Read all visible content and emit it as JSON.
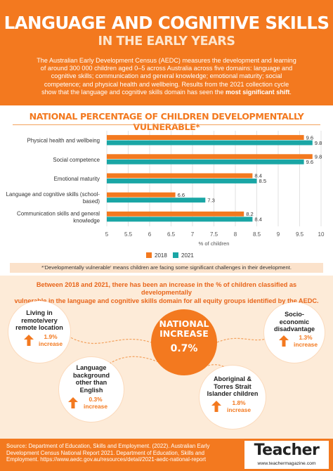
{
  "header": {
    "title": "LANGUAGE AND COGNITIVE SKILLS",
    "subtitle": "IN THE EARLY YEARS",
    "intro_lines": [
      "The Australian Early Development Census (AEDC) measures the development and learning",
      "of around 300 000 children aged 0–5 across Australia across five domains: language and",
      "cognitive skills; communication and general knowledge; emotional maturity; social",
      "competence; and physical health and wellbeing. Results from the 2021 collection cycle"
    ],
    "intro_last_prefix": "show that the language and cognitive skills domain has seen the ",
    "intro_last_bold": "most significant shift",
    "intro_last_suffix": "."
  },
  "chart_data": {
    "type": "bar",
    "orientation": "horizontal",
    "title": "NATIONAL PERCENTAGE OF CHILDREN DEVELOPMENTALLY VULNERABLE*",
    "categories": [
      "Physical health and wellbeing",
      "Social competence",
      "Emotional maturity",
      "Language and cognitive skills (school-based)",
      "Communication skills and general knowledge"
    ],
    "category_lines": [
      [
        "Physical health and wellbeing"
      ],
      [
        "Social competence"
      ],
      [
        "Emotional maturity"
      ],
      [
        "Language and cognitive skills (school-",
        "based)"
      ],
      [
        "Communication skills and general",
        "knowledge"
      ]
    ],
    "series": [
      {
        "name": "2018",
        "color": "#f3791f",
        "values": [
          9.6,
          9.8,
          8.4,
          6.6,
          8.2
        ]
      },
      {
        "name": "2021",
        "color": "#1aa6a5",
        "values": [
          9.8,
          9.6,
          8.5,
          7.3,
          8.4
        ]
      }
    ],
    "xlim": [
      5,
      10
    ],
    "xticks": [
      "5",
      "5.5",
      "6",
      "6.5",
      "7",
      "7.5",
      "8",
      "8.5",
      "9",
      "9.5",
      "10"
    ],
    "xlabel": "% of children",
    "grid": true,
    "legend": "bottom"
  },
  "footnote": "*‘Developmentally vulnerable’ means children are facing some significant challenges in their development.",
  "equity": {
    "intro_lines": [
      "Between 2018 and 2021, there has been an increase in the % of children classified as developmentally",
      "vulnerable in the language and cognitive skills domain for all equity groups identified by the AEDC."
    ],
    "national": {
      "line1": "NATIONAL",
      "line2": "INCREASE",
      "value": "0.7%"
    },
    "groups": [
      {
        "label_lines": [
          "Living in",
          "remote/very",
          "remote location"
        ],
        "value": "1.9%",
        "suffix": "increase"
      },
      {
        "label_lines": [
          "Socio-",
          "economic",
          "disadvantage"
        ],
        "value": "1.3%",
        "suffix": "increase"
      },
      {
        "label_lines": [
          "Language",
          "background",
          "other than",
          "English"
        ],
        "value": "0.3%",
        "suffix": "increase"
      },
      {
        "label_lines": [
          "Aboriginal &",
          "Torres Strait",
          "Islander children"
        ],
        "value": "1.8%",
        "suffix": "increase"
      }
    ]
  },
  "footer": {
    "source_label": "Source:",
    "source_lines": [
      " Department of Education, Skills and Employment. (2022). Australian Early",
      "Development Census National Report 2021. Department of Education, Skills and",
      "Employment. https://www.aedc.gov.au/resources/detail/2021-aedc-national-report"
    ],
    "logo": "Teacher",
    "logo_url": "www.teachermagazine.com"
  },
  "colors": {
    "accent": "#f3791f",
    "teal": "#1aa6a5",
    "cream": "#fdebd8"
  }
}
